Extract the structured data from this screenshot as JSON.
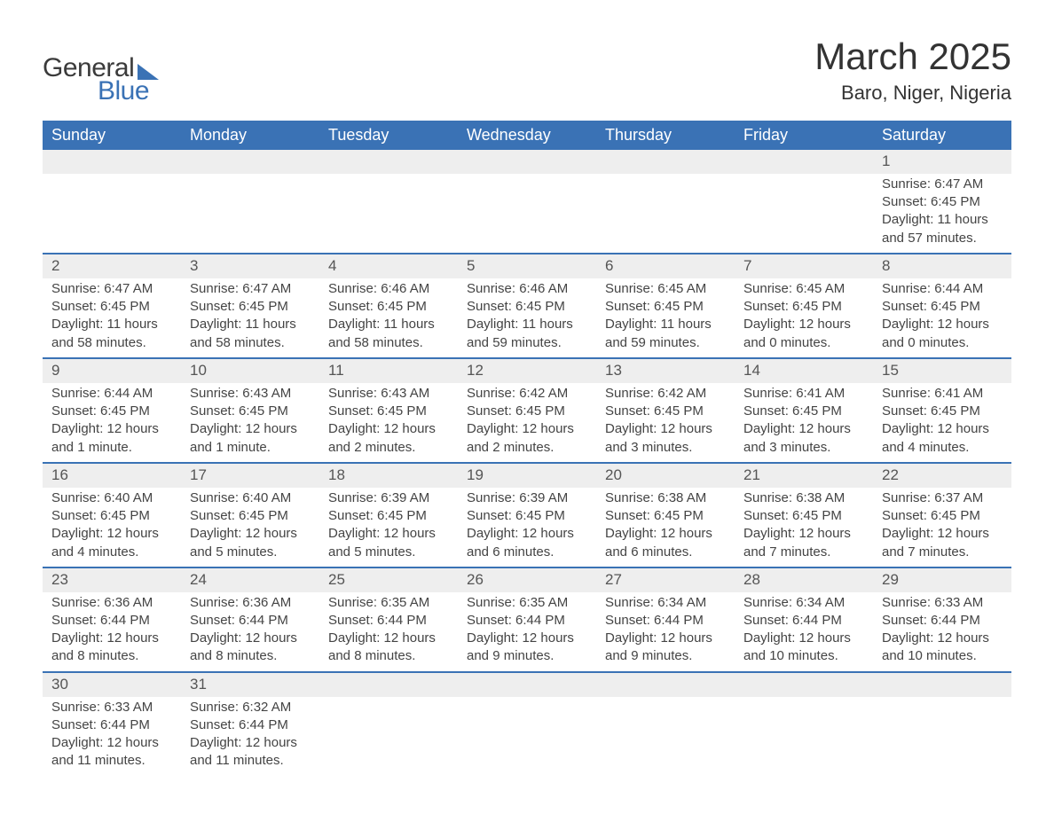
{
  "brand": {
    "general": "General",
    "blue": "Blue"
  },
  "title": "March 2025",
  "location": "Baro, Niger, Nigeria",
  "days_of_week": [
    "Sunday",
    "Monday",
    "Tuesday",
    "Wednesday",
    "Thursday",
    "Friday",
    "Saturday"
  ],
  "colors": {
    "header_bg": "#3a72b5",
    "header_text": "#ffffff",
    "daynum_bg": "#eeeeee",
    "row_divider": "#3a72b5",
    "body_text": "#444444",
    "page_bg": "#ffffff"
  },
  "typography": {
    "title_fontsize": 42,
    "location_fontsize": 22,
    "header_fontsize": 18,
    "body_fontsize": 15
  },
  "weeks": [
    [
      null,
      null,
      null,
      null,
      null,
      null,
      {
        "n": "1",
        "sunrise": "Sunrise: 6:47 AM",
        "sunset": "Sunset: 6:45 PM",
        "daylight1": "Daylight: 11 hours",
        "daylight2": "and 57 minutes."
      }
    ],
    [
      {
        "n": "2",
        "sunrise": "Sunrise: 6:47 AM",
        "sunset": "Sunset: 6:45 PM",
        "daylight1": "Daylight: 11 hours",
        "daylight2": "and 58 minutes."
      },
      {
        "n": "3",
        "sunrise": "Sunrise: 6:47 AM",
        "sunset": "Sunset: 6:45 PM",
        "daylight1": "Daylight: 11 hours",
        "daylight2": "and 58 minutes."
      },
      {
        "n": "4",
        "sunrise": "Sunrise: 6:46 AM",
        "sunset": "Sunset: 6:45 PM",
        "daylight1": "Daylight: 11 hours",
        "daylight2": "and 58 minutes."
      },
      {
        "n": "5",
        "sunrise": "Sunrise: 6:46 AM",
        "sunset": "Sunset: 6:45 PM",
        "daylight1": "Daylight: 11 hours",
        "daylight2": "and 59 minutes."
      },
      {
        "n": "6",
        "sunrise": "Sunrise: 6:45 AM",
        "sunset": "Sunset: 6:45 PM",
        "daylight1": "Daylight: 11 hours",
        "daylight2": "and 59 minutes."
      },
      {
        "n": "7",
        "sunrise": "Sunrise: 6:45 AM",
        "sunset": "Sunset: 6:45 PM",
        "daylight1": "Daylight: 12 hours",
        "daylight2": "and 0 minutes."
      },
      {
        "n": "8",
        "sunrise": "Sunrise: 6:44 AM",
        "sunset": "Sunset: 6:45 PM",
        "daylight1": "Daylight: 12 hours",
        "daylight2": "and 0 minutes."
      }
    ],
    [
      {
        "n": "9",
        "sunrise": "Sunrise: 6:44 AM",
        "sunset": "Sunset: 6:45 PM",
        "daylight1": "Daylight: 12 hours",
        "daylight2": "and 1 minute."
      },
      {
        "n": "10",
        "sunrise": "Sunrise: 6:43 AM",
        "sunset": "Sunset: 6:45 PM",
        "daylight1": "Daylight: 12 hours",
        "daylight2": "and 1 minute."
      },
      {
        "n": "11",
        "sunrise": "Sunrise: 6:43 AM",
        "sunset": "Sunset: 6:45 PM",
        "daylight1": "Daylight: 12 hours",
        "daylight2": "and 2 minutes."
      },
      {
        "n": "12",
        "sunrise": "Sunrise: 6:42 AM",
        "sunset": "Sunset: 6:45 PM",
        "daylight1": "Daylight: 12 hours",
        "daylight2": "and 2 minutes."
      },
      {
        "n": "13",
        "sunrise": "Sunrise: 6:42 AM",
        "sunset": "Sunset: 6:45 PM",
        "daylight1": "Daylight: 12 hours",
        "daylight2": "and 3 minutes."
      },
      {
        "n": "14",
        "sunrise": "Sunrise: 6:41 AM",
        "sunset": "Sunset: 6:45 PM",
        "daylight1": "Daylight: 12 hours",
        "daylight2": "and 3 minutes."
      },
      {
        "n": "15",
        "sunrise": "Sunrise: 6:41 AM",
        "sunset": "Sunset: 6:45 PM",
        "daylight1": "Daylight: 12 hours",
        "daylight2": "and 4 minutes."
      }
    ],
    [
      {
        "n": "16",
        "sunrise": "Sunrise: 6:40 AM",
        "sunset": "Sunset: 6:45 PM",
        "daylight1": "Daylight: 12 hours",
        "daylight2": "and 4 minutes."
      },
      {
        "n": "17",
        "sunrise": "Sunrise: 6:40 AM",
        "sunset": "Sunset: 6:45 PM",
        "daylight1": "Daylight: 12 hours",
        "daylight2": "and 5 minutes."
      },
      {
        "n": "18",
        "sunrise": "Sunrise: 6:39 AM",
        "sunset": "Sunset: 6:45 PM",
        "daylight1": "Daylight: 12 hours",
        "daylight2": "and 5 minutes."
      },
      {
        "n": "19",
        "sunrise": "Sunrise: 6:39 AM",
        "sunset": "Sunset: 6:45 PM",
        "daylight1": "Daylight: 12 hours",
        "daylight2": "and 6 minutes."
      },
      {
        "n": "20",
        "sunrise": "Sunrise: 6:38 AM",
        "sunset": "Sunset: 6:45 PM",
        "daylight1": "Daylight: 12 hours",
        "daylight2": "and 6 minutes."
      },
      {
        "n": "21",
        "sunrise": "Sunrise: 6:38 AM",
        "sunset": "Sunset: 6:45 PM",
        "daylight1": "Daylight: 12 hours",
        "daylight2": "and 7 minutes."
      },
      {
        "n": "22",
        "sunrise": "Sunrise: 6:37 AM",
        "sunset": "Sunset: 6:45 PM",
        "daylight1": "Daylight: 12 hours",
        "daylight2": "and 7 minutes."
      }
    ],
    [
      {
        "n": "23",
        "sunrise": "Sunrise: 6:36 AM",
        "sunset": "Sunset: 6:44 PM",
        "daylight1": "Daylight: 12 hours",
        "daylight2": "and 8 minutes."
      },
      {
        "n": "24",
        "sunrise": "Sunrise: 6:36 AM",
        "sunset": "Sunset: 6:44 PM",
        "daylight1": "Daylight: 12 hours",
        "daylight2": "and 8 minutes."
      },
      {
        "n": "25",
        "sunrise": "Sunrise: 6:35 AM",
        "sunset": "Sunset: 6:44 PM",
        "daylight1": "Daylight: 12 hours",
        "daylight2": "and 8 minutes."
      },
      {
        "n": "26",
        "sunrise": "Sunrise: 6:35 AM",
        "sunset": "Sunset: 6:44 PM",
        "daylight1": "Daylight: 12 hours",
        "daylight2": "and 9 minutes."
      },
      {
        "n": "27",
        "sunrise": "Sunrise: 6:34 AM",
        "sunset": "Sunset: 6:44 PM",
        "daylight1": "Daylight: 12 hours",
        "daylight2": "and 9 minutes."
      },
      {
        "n": "28",
        "sunrise": "Sunrise: 6:34 AM",
        "sunset": "Sunset: 6:44 PM",
        "daylight1": "Daylight: 12 hours",
        "daylight2": "and 10 minutes."
      },
      {
        "n": "29",
        "sunrise": "Sunrise: 6:33 AM",
        "sunset": "Sunset: 6:44 PM",
        "daylight1": "Daylight: 12 hours",
        "daylight2": "and 10 minutes."
      }
    ],
    [
      {
        "n": "30",
        "sunrise": "Sunrise: 6:33 AM",
        "sunset": "Sunset: 6:44 PM",
        "daylight1": "Daylight: 12 hours",
        "daylight2": "and 11 minutes."
      },
      {
        "n": "31",
        "sunrise": "Sunrise: 6:32 AM",
        "sunset": "Sunset: 6:44 PM",
        "daylight1": "Daylight: 12 hours",
        "daylight2": "and 11 minutes."
      },
      null,
      null,
      null,
      null,
      null
    ]
  ]
}
